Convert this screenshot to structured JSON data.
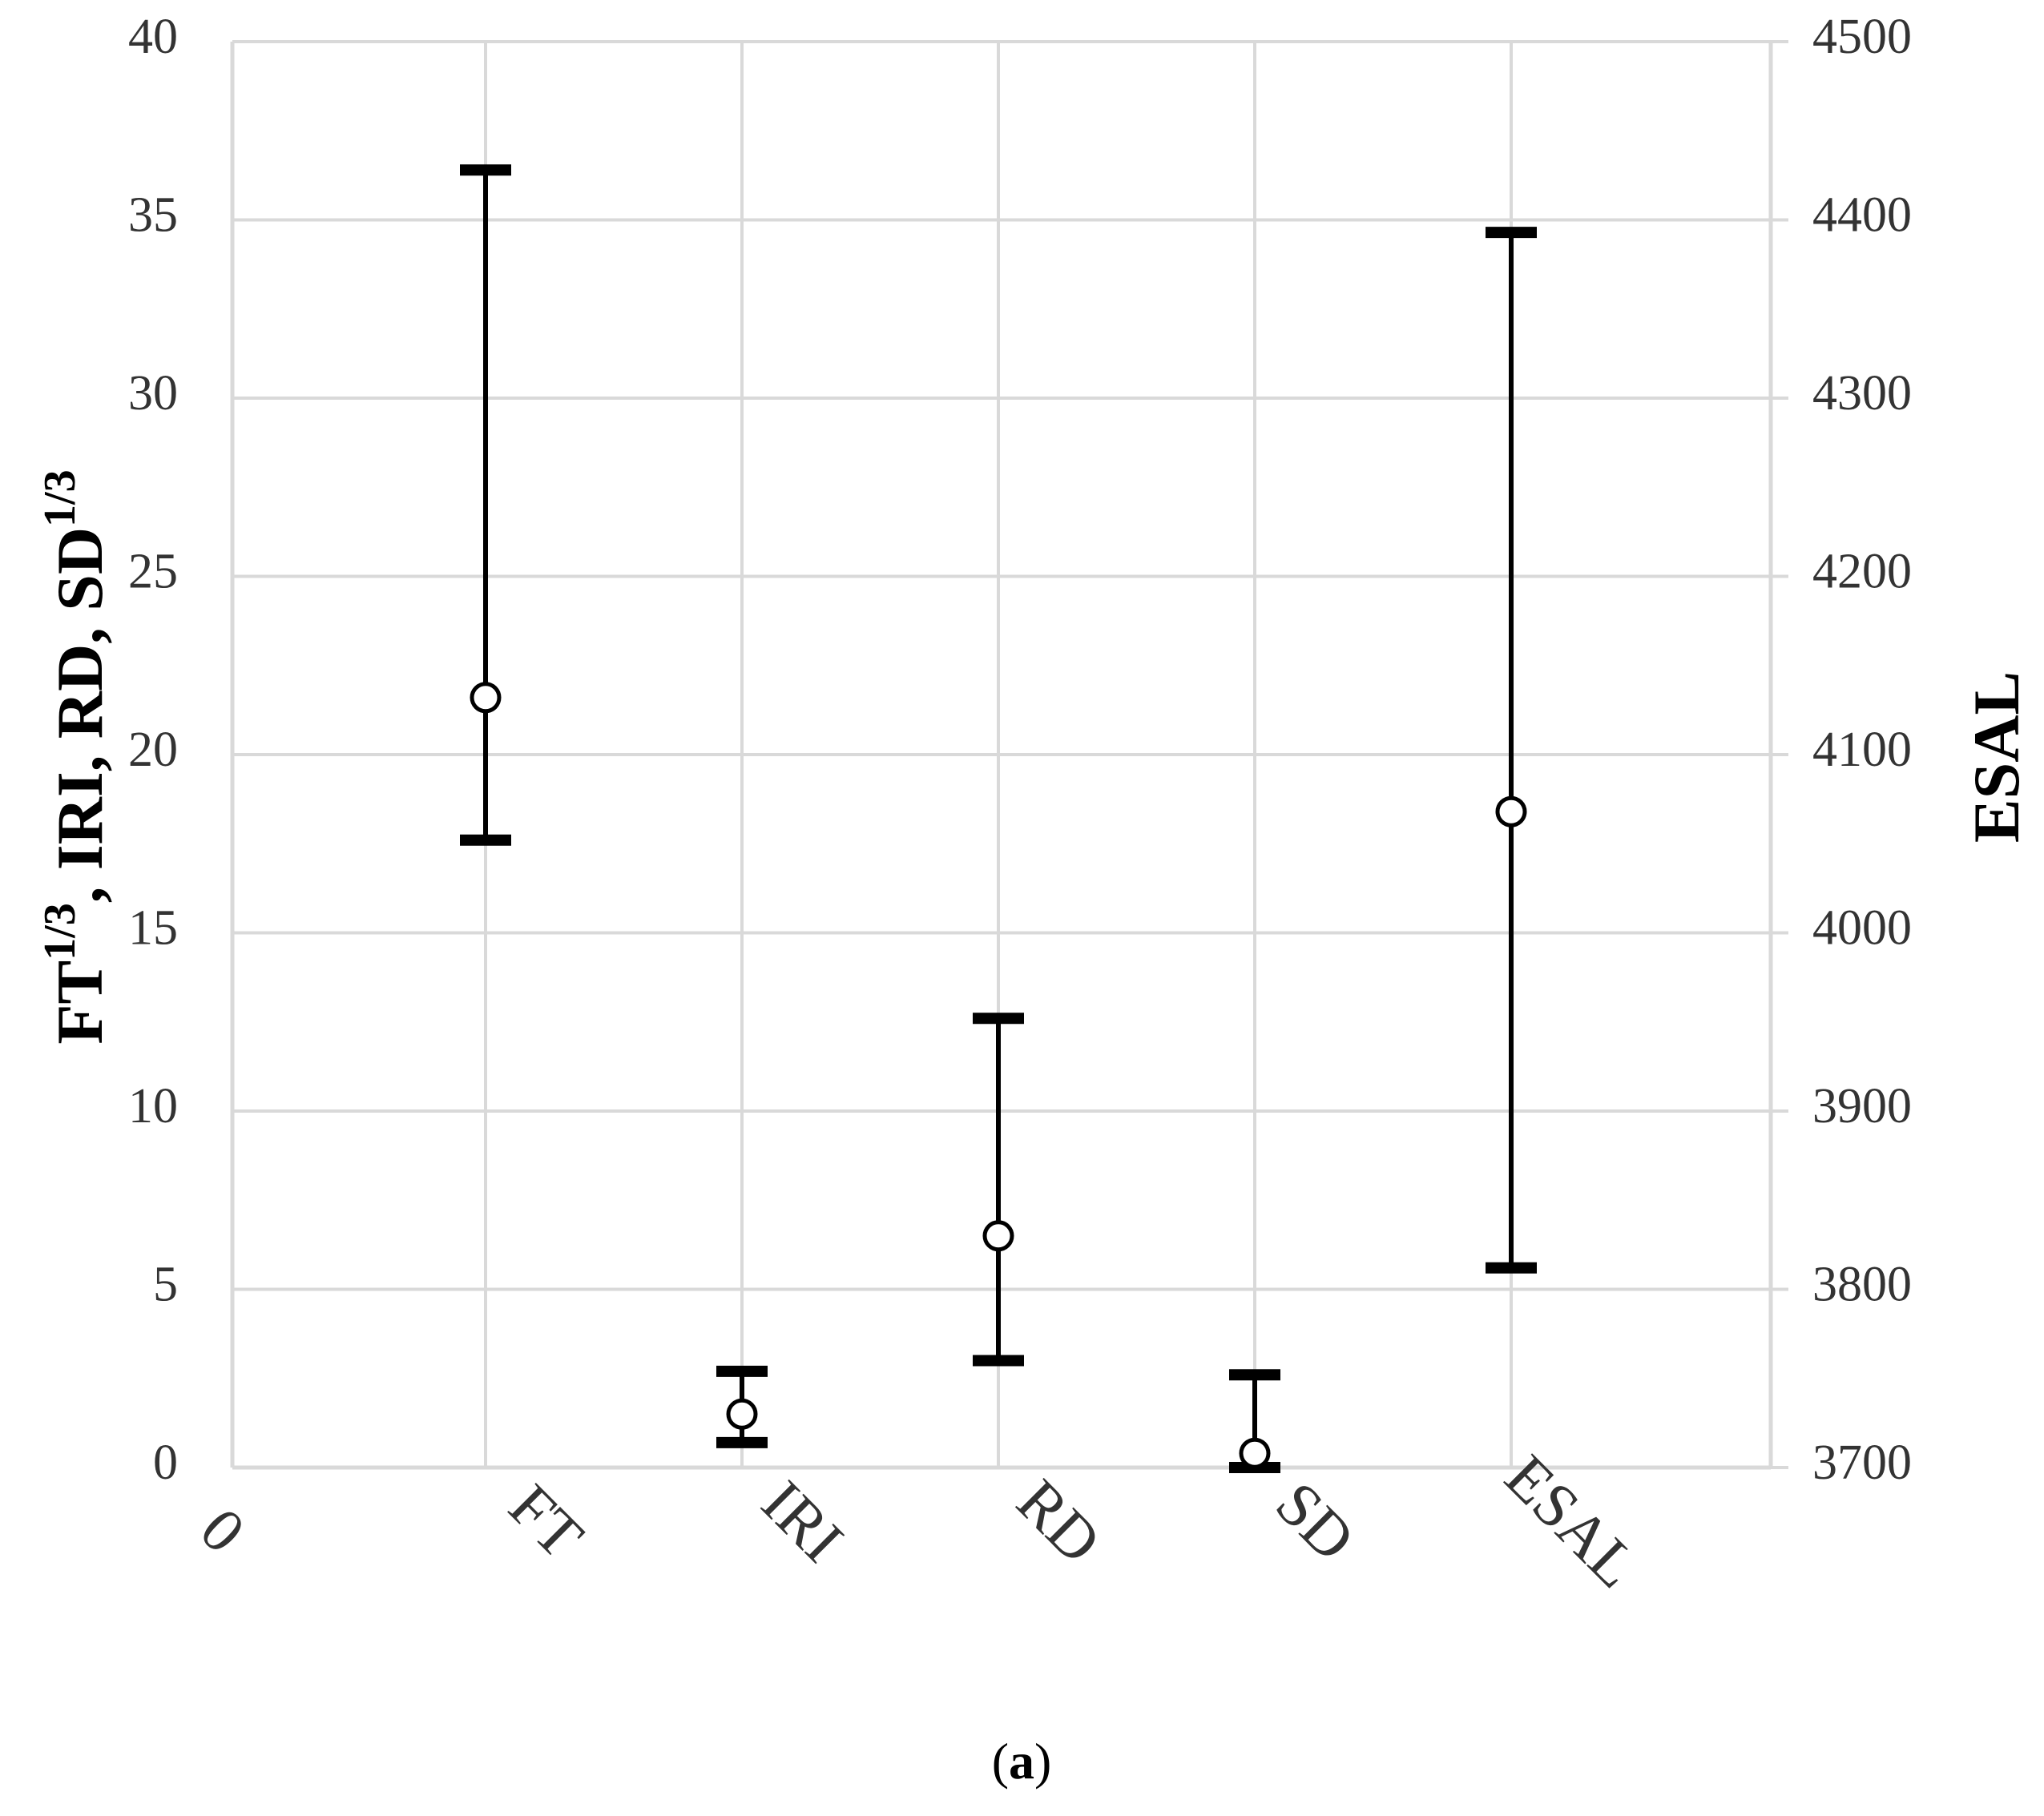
{
  "chart_data": {
    "type": "scatter",
    "categories": [
      "FT",
      "IRI",
      "RD",
      "SD",
      "ESAL"
    ],
    "series": [
      {
        "axis": "left",
        "points": [
          {
            "category": "FT",
            "value": 21.6,
            "low": 17.6,
            "high": 36.4
          },
          {
            "category": "IRI",
            "value": 1.5,
            "low": 0.7,
            "high": 2.7
          },
          {
            "category": "RD",
            "value": 6.5,
            "low": 3.0,
            "high": 12.6
          },
          {
            "category": "SD",
            "value": 0.4,
            "low": 0.0,
            "high": 2.6
          }
        ]
      },
      {
        "axis": "right",
        "points": [
          {
            "category": "ESAL",
            "value": 4068,
            "low": 3812,
            "high": 4393
          }
        ]
      }
    ],
    "y_left": {
      "label_parts": [
        "FT",
        "1/3",
        ", IRI, RD, SD",
        "1/3"
      ],
      "min": 0,
      "max": 40,
      "ticks": [
        "0",
        "5",
        "10",
        "15",
        "20",
        "25",
        "30",
        "35",
        "40"
      ]
    },
    "y_right": {
      "label": "ESAL",
      "min": 3700,
      "max": 4500,
      "ticks": [
        "3700",
        "3800",
        "3900",
        "4000",
        "4100",
        "4200",
        "4300",
        "4400",
        "4500"
      ]
    },
    "x_origin_label": "0",
    "grid": true,
    "caption": {
      "open": "(",
      "letter": "a",
      "close": ")"
    },
    "colors": {
      "marker": "#000000",
      "grid": "#d9d9d9",
      "tick_text": "#333333"
    }
  }
}
